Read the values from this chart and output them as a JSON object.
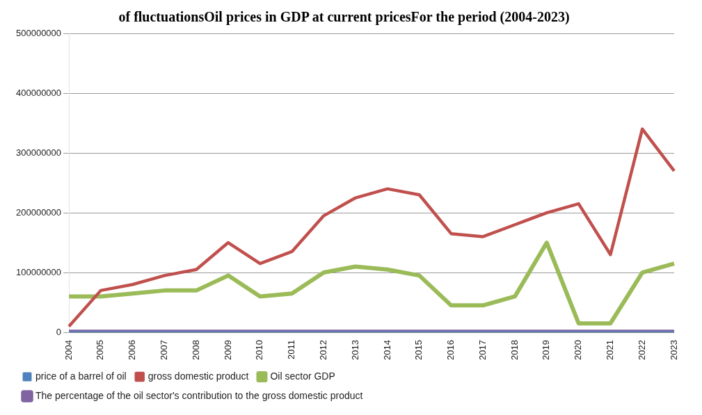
{
  "chart_data": {
    "type": "line",
    "title": "of fluctuationsOil prices in GDP at current pricesFor the period (2004-2023)",
    "categories": [
      "2004",
      "2005",
      "2006",
      "2007",
      "2008",
      "2009",
      "2010",
      "2011",
      "2012",
      "2013",
      "2014",
      "2015",
      "2016",
      "2017",
      "2018",
      "2019",
      "2020",
      "2021",
      "2022",
      "2023"
    ],
    "series": [
      {
        "name": "price of a barrel of oil",
        "color": "#4f81bd",
        "values": [
          0,
          0,
          0,
          0,
          0,
          0,
          0,
          0,
          0,
          0,
          0,
          0,
          0,
          0,
          0,
          0,
          0,
          0,
          0,
          0
        ]
      },
      {
        "name": "gross domestic product",
        "color": "#c0504d",
        "values": [
          10000000,
          70000000,
          80000000,
          95000000,
          105000000,
          150000000,
          115000000,
          135000000,
          195000000,
          225000000,
          240000000,
          230000000,
          165000000,
          160000000,
          180000000,
          200000000,
          215000000,
          130000000,
          340000000,
          270000000
        ]
      },
      {
        "name": "Oil sector GDP",
        "color": "#9bbb59",
        "values": [
          60000000,
          60000000,
          65000000,
          70000000,
          70000000,
          95000000,
          60000000,
          65000000,
          100000000,
          110000000,
          105000000,
          95000000,
          45000000,
          45000000,
          60000000,
          150000000,
          15000000,
          15000000,
          100000000,
          115000000
        ]
      },
      {
        "name": "The percentage of the oil sector's contribution to the gross domestic product",
        "color": "#8064a2",
        "values": [
          0,
          0,
          0,
          0,
          0,
          0,
          0,
          0,
          0,
          0,
          0,
          0,
          0,
          0,
          0,
          0,
          0,
          0,
          0,
          0
        ]
      }
    ],
    "ylim": [
      0,
      500000000
    ],
    "yticks": [
      0,
      100000000,
      200000000,
      300000000,
      400000000,
      500000000
    ],
    "grid": "y",
    "legend": "bottom",
    "marker": "none",
    "line_style": "solid"
  }
}
